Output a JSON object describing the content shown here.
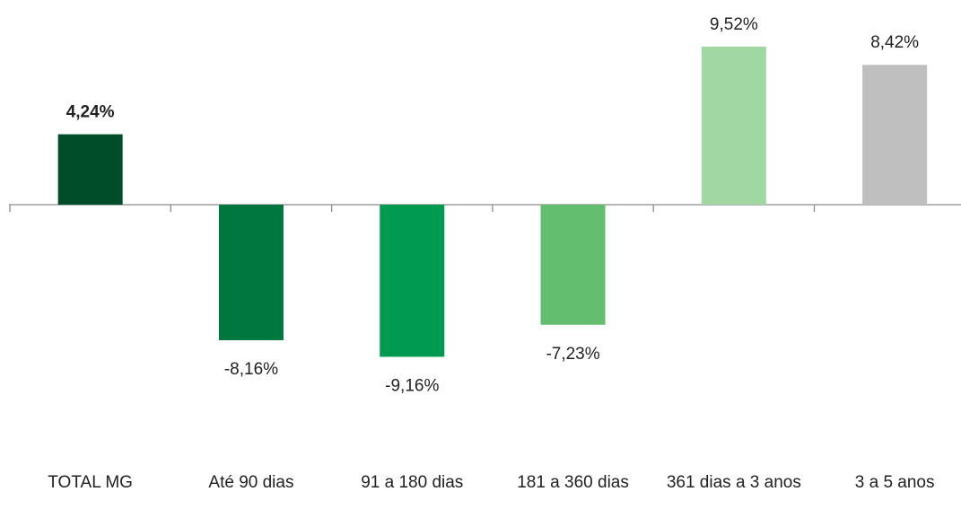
{
  "chart_data": {
    "type": "bar",
    "categories": [
      "TOTAL MG",
      "Até 90 dias",
      "91 a 180 dias",
      "181 a 360 dias",
      "361 dias a 3 anos",
      "3 a 5 anos"
    ],
    "values": [
      4.24,
      -8.16,
      -9.16,
      -7.23,
      9.52,
      8.42
    ],
    "value_labels": [
      "4,24%",
      "-8,16%",
      "-9,16%",
      "-7,23%",
      "9,52%",
      "8,42%"
    ],
    "colors": [
      "#004d2a",
      "#00773f",
      "#009a50",
      "#63bf6f",
      "#a0d7a3",
      "#bfbfbf"
    ]
  }
}
